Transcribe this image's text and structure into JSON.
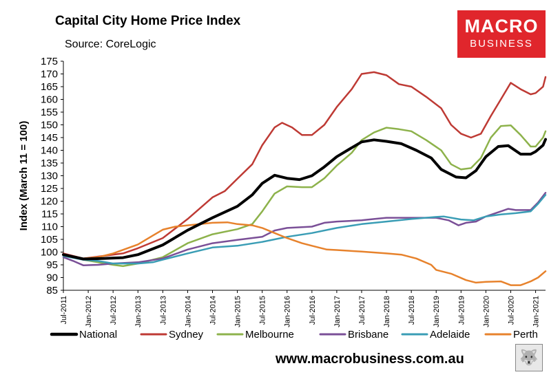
{
  "header": {
    "title": "Capital City Home Price Index",
    "source": "Source: CoreLogic",
    "logo_line1": "MACRO",
    "logo_line2": "BUSINESS"
  },
  "footer": {
    "url": "www.macrobusiness.com.au"
  },
  "colors": {
    "National": "#000000",
    "Sydney": "#be3a34",
    "Melbourne": "#8db24b",
    "Brisbane": "#7a4f97",
    "Adelaide": "#3a9db5",
    "Perth": "#e7822c",
    "logo_bg": "#e0262c"
  },
  "chart_data": {
    "type": "line",
    "title": "Capital City Home Price Index",
    "subtitle": "Source: CoreLogic",
    "xlabel": "",
    "ylabel": "Index (March 11 = 100)",
    "ylim": [
      85,
      175
    ],
    "yticks": [
      85,
      90,
      95,
      100,
      105,
      110,
      115,
      120,
      125,
      130,
      135,
      140,
      145,
      150,
      155,
      160,
      165,
      170,
      175
    ],
    "x_start": 2011.5,
    "x_end": 2021.2,
    "xticks": [
      {
        "label": "Jul-2011",
        "x": 2011.5
      },
      {
        "label": "Jan-2012",
        "x": 2012.0
      },
      {
        "label": "Jul-2012",
        "x": 2012.5
      },
      {
        "label": "Jan-2013",
        "x": 2013.0
      },
      {
        "label": "Jul-2013",
        "x": 2013.5
      },
      {
        "label": "Jan-2014",
        "x": 2014.0
      },
      {
        "label": "Jul-2014",
        "x": 2014.5
      },
      {
        "label": "Jan-2015",
        "x": 2015.0
      },
      {
        "label": "Jul-2015",
        "x": 2015.5
      },
      {
        "label": "Jan-2016",
        "x": 2016.0
      },
      {
        "label": "Jul-2016",
        "x": 2016.5
      },
      {
        "label": "Jan-2017",
        "x": 2017.0
      },
      {
        "label": "Jul-2017",
        "x": 2017.5
      },
      {
        "label": "Jan-2018",
        "x": 2018.0
      },
      {
        "label": "Jul-2018",
        "x": 2018.5
      },
      {
        "label": "Jan-2019",
        "x": 2019.0
      },
      {
        "label": "Jul-2019",
        "x": 2019.5
      },
      {
        "label": "Jan-2020",
        "x": 2020.0
      },
      {
        "label": "Jul-2020",
        "x": 2020.5
      },
      {
        "label": "Jan-2021",
        "x": 2021.0
      }
    ],
    "legend": "bottom",
    "series": [
      {
        "name": "National",
        "color": "#000000",
        "width": 4,
        "points": [
          [
            2011.5,
            99
          ],
          [
            2011.9,
            97.3
          ],
          [
            2012.3,
            97.5
          ],
          [
            2012.7,
            97.8
          ],
          [
            2013.0,
            99
          ],
          [
            2013.5,
            102.8
          ],
          [
            2014.0,
            108.6
          ],
          [
            2014.5,
            113.5
          ],
          [
            2015.0,
            118
          ],
          [
            2015.3,
            122.5
          ],
          [
            2015.5,
            127
          ],
          [
            2015.75,
            130.2
          ],
          [
            2016.0,
            129
          ],
          [
            2016.25,
            128.5
          ],
          [
            2016.5,
            130
          ],
          [
            2016.75,
            133.5
          ],
          [
            2017.0,
            137.5
          ],
          [
            2017.3,
            141
          ],
          [
            2017.5,
            143.3
          ],
          [
            2017.75,
            144.1
          ],
          [
            2018.0,
            143.5
          ],
          [
            2018.3,
            142.6
          ],
          [
            2018.6,
            140
          ],
          [
            2018.9,
            137
          ],
          [
            2019.1,
            132.5
          ],
          [
            2019.4,
            129.5
          ],
          [
            2019.6,
            129.2
          ],
          [
            2019.8,
            132
          ],
          [
            2020.0,
            137.5
          ],
          [
            2020.25,
            141.5
          ],
          [
            2020.45,
            141.8
          ],
          [
            2020.7,
            138.5
          ],
          [
            2020.9,
            138.5
          ],
          [
            2021.0,
            139.5
          ],
          [
            2021.15,
            142
          ],
          [
            2021.2,
            144.3
          ]
        ]
      },
      {
        "name": "Sydney",
        "color": "#be3a34",
        "width": 2.5,
        "points": [
          [
            2011.5,
            99.5
          ],
          [
            2011.9,
            97.5
          ],
          [
            2012.3,
            98.5
          ],
          [
            2012.7,
            99.5
          ],
          [
            2013.0,
            101.5
          ],
          [
            2013.5,
            105.5
          ],
          [
            2014.0,
            113
          ],
          [
            2014.5,
            121.5
          ],
          [
            2014.75,
            124
          ],
          [
            2015.0,
            128.8
          ],
          [
            2015.3,
            134.5
          ],
          [
            2015.5,
            142
          ],
          [
            2015.75,
            149
          ],
          [
            2015.9,
            150.8
          ],
          [
            2016.1,
            149
          ],
          [
            2016.3,
            146
          ],
          [
            2016.5,
            146
          ],
          [
            2016.75,
            150
          ],
          [
            2017.0,
            157
          ],
          [
            2017.3,
            164
          ],
          [
            2017.5,
            170
          ],
          [
            2017.75,
            170.7
          ],
          [
            2018.0,
            169.5
          ],
          [
            2018.25,
            166
          ],
          [
            2018.5,
            165
          ],
          [
            2018.8,
            161
          ],
          [
            2019.1,
            156.5
          ],
          [
            2019.3,
            150
          ],
          [
            2019.5,
            146.5
          ],
          [
            2019.7,
            145
          ],
          [
            2019.9,
            146.5
          ],
          [
            2020.1,
            153.5
          ],
          [
            2020.3,
            160
          ],
          [
            2020.5,
            166.5
          ],
          [
            2020.7,
            164
          ],
          [
            2020.9,
            162
          ],
          [
            2021.0,
            162.5
          ],
          [
            2021.15,
            165
          ],
          [
            2021.2,
            168.8
          ]
        ]
      },
      {
        "name": "Melbourne",
        "color": "#8db24b",
        "width": 2.5,
        "points": [
          [
            2011.5,
            99
          ],
          [
            2011.9,
            97
          ],
          [
            2012.2,
            96
          ],
          [
            2012.5,
            95
          ],
          [
            2012.7,
            94.5
          ],
          [
            2013.0,
            95.5
          ],
          [
            2013.5,
            98
          ],
          [
            2014.0,
            103.5
          ],
          [
            2014.5,
            107
          ],
          [
            2015.0,
            109
          ],
          [
            2015.3,
            111
          ],
          [
            2015.5,
            116
          ],
          [
            2015.75,
            123
          ],
          [
            2016.0,
            125.8
          ],
          [
            2016.3,
            125.5
          ],
          [
            2016.5,
            125.5
          ],
          [
            2016.75,
            129
          ],
          [
            2017.0,
            134
          ],
          [
            2017.3,
            139
          ],
          [
            2017.5,
            144
          ],
          [
            2017.75,
            147
          ],
          [
            2018.0,
            148.9
          ],
          [
            2018.25,
            148.3
          ],
          [
            2018.5,
            147.5
          ],
          [
            2018.8,
            144
          ],
          [
            2019.1,
            140
          ],
          [
            2019.3,
            134.5
          ],
          [
            2019.5,
            132.5
          ],
          [
            2019.7,
            133
          ],
          [
            2019.9,
            137
          ],
          [
            2020.1,
            145
          ],
          [
            2020.3,
            149.5
          ],
          [
            2020.5,
            149.8
          ],
          [
            2020.7,
            146
          ],
          [
            2020.9,
            141.5
          ],
          [
            2021.0,
            141.5
          ],
          [
            2021.15,
            145
          ],
          [
            2021.2,
            147.5
          ]
        ]
      },
      {
        "name": "Brisbane",
        "color": "#7a4f97",
        "width": 2.5,
        "points": [
          [
            2011.5,
            98
          ],
          [
            2011.7,
            96.5
          ],
          [
            2011.9,
            94.8
          ],
          [
            2012.2,
            95
          ],
          [
            2012.5,
            95.5
          ],
          [
            2013.0,
            96
          ],
          [
            2013.5,
            97.5
          ],
          [
            2014.0,
            101
          ],
          [
            2014.5,
            103.5
          ],
          [
            2015.0,
            104.8
          ],
          [
            2015.5,
            106
          ],
          [
            2015.75,
            108.5
          ],
          [
            2016.0,
            109.5
          ],
          [
            2016.5,
            110
          ],
          [
            2016.75,
            111.5
          ],
          [
            2017.0,
            112
          ],
          [
            2017.5,
            112.5
          ],
          [
            2017.75,
            113
          ],
          [
            2018.0,
            113.5
          ],
          [
            2018.5,
            113.5
          ],
          [
            2018.8,
            113.5
          ],
          [
            2019.0,
            113.5
          ],
          [
            2019.25,
            112.5
          ],
          [
            2019.45,
            110.5
          ],
          [
            2019.6,
            111.5
          ],
          [
            2019.8,
            112
          ],
          [
            2020.0,
            114
          ],
          [
            2020.3,
            116
          ],
          [
            2020.45,
            117
          ],
          [
            2020.6,
            116.5
          ],
          [
            2020.9,
            116.5
          ],
          [
            2021.05,
            119.5
          ],
          [
            2021.2,
            123.3
          ]
        ]
      },
      {
        "name": "Adelaide",
        "color": "#3a9db5",
        "width": 2.5,
        "points": [
          [
            2011.5,
            98.5
          ],
          [
            2011.9,
            97
          ],
          [
            2012.2,
            96.5
          ],
          [
            2012.5,
            95.5
          ],
          [
            2013.0,
            95.5
          ],
          [
            2013.3,
            96
          ],
          [
            2013.5,
            97
          ],
          [
            2014.0,
            99.5
          ],
          [
            2014.5,
            101.8
          ],
          [
            2015.0,
            102.5
          ],
          [
            2015.5,
            104
          ],
          [
            2015.75,
            105
          ],
          [
            2016.0,
            106
          ],
          [
            2016.5,
            107.5
          ],
          [
            2017.0,
            109.5
          ],
          [
            2017.5,
            111
          ],
          [
            2018.0,
            112
          ],
          [
            2018.5,
            113
          ],
          [
            2019.0,
            113.8
          ],
          [
            2019.15,
            114
          ],
          [
            2019.5,
            112.8
          ],
          [
            2019.75,
            112.5
          ],
          [
            2020.0,
            114
          ],
          [
            2020.3,
            114.8
          ],
          [
            2020.6,
            115.3
          ],
          [
            2020.9,
            116
          ],
          [
            2021.05,
            119
          ],
          [
            2021.2,
            122.5
          ]
        ]
      },
      {
        "name": "Perth",
        "color": "#e7822c",
        "width": 2.5,
        "points": [
          [
            2011.5,
            99
          ],
          [
            2011.9,
            97.5
          ],
          [
            2012.2,
            98
          ],
          [
            2012.5,
            99.5
          ],
          [
            2013.0,
            103
          ],
          [
            2013.3,
            106.5
          ],
          [
            2013.5,
            108.8
          ],
          [
            2013.75,
            110
          ],
          [
            2014.0,
            110.5
          ],
          [
            2014.5,
            111.5
          ],
          [
            2014.8,
            111.7
          ],
          [
            2015.0,
            111
          ],
          [
            2015.3,
            110.5
          ],
          [
            2015.5,
            109.5
          ],
          [
            2015.75,
            107.5
          ],
          [
            2016.0,
            105.5
          ],
          [
            2016.3,
            103.5
          ],
          [
            2016.5,
            102.5
          ],
          [
            2016.8,
            101
          ],
          [
            2017.0,
            100.8
          ],
          [
            2017.5,
            100.2
          ],
          [
            2018.0,
            99.5
          ],
          [
            2018.3,
            99
          ],
          [
            2018.6,
            97.5
          ],
          [
            2018.9,
            95
          ],
          [
            2019.0,
            93
          ],
          [
            2019.3,
            91.5
          ],
          [
            2019.6,
            89
          ],
          [
            2019.8,
            88
          ],
          [
            2020.0,
            88.3
          ],
          [
            2020.3,
            88.5
          ],
          [
            2020.5,
            87
          ],
          [
            2020.7,
            87
          ],
          [
            2020.9,
            88.5
          ],
          [
            2021.05,
            90
          ],
          [
            2021.2,
            92.5
          ]
        ]
      }
    ]
  }
}
